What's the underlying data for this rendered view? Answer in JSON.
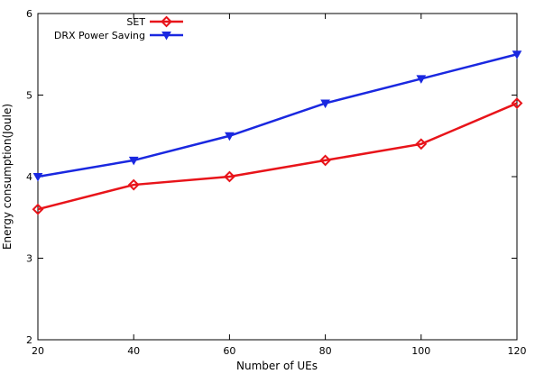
{
  "chart_data": {
    "type": "line",
    "xlabel": "Number of UEs",
    "ylabel": "Energy consumption(Joule)",
    "x": [
      20,
      40,
      60,
      80,
      100,
      120
    ],
    "xlim": [
      20,
      120
    ],
    "ylim": [
      2,
      6
    ],
    "xticks": [
      20,
      40,
      60,
      80,
      100,
      120
    ],
    "yticks": [
      2,
      3,
      4,
      5,
      6
    ],
    "grid": false,
    "legend": "top-left",
    "series": [
      {
        "name": "SET",
        "color": "#e8141a",
        "marker": "diamond",
        "values": [
          3.6,
          3.9,
          4.0,
          4.2,
          4.4,
          4.9
        ]
      },
      {
        "name": "DRX Power Saving",
        "color": "#1a28e0",
        "marker": "triangle-down",
        "values": [
          4.0,
          4.2,
          4.5,
          4.9,
          5.2,
          5.5
        ]
      }
    ]
  }
}
